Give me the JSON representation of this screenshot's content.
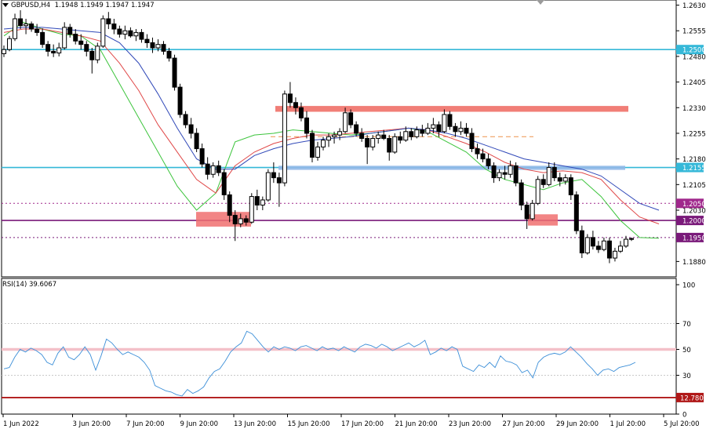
{
  "header": {
    "symbol": "GBPUSD,H4",
    "ohlc": "1.1948 1.1949 1.1947 1.1947"
  },
  "rsi_header": "RSI(14) 39.6067",
  "chart_data": [
    {
      "type": "candlestick",
      "symbol": "GBPUSD",
      "timeframe": "H4",
      "ylim": [
        1.1835,
        1.2645
      ],
      "price_ticks": [
        "1.2630",
        "1.2555",
        "1.2480",
        "1.2405",
        "1.2330",
        "1.2255",
        "1.2180",
        "1.2105",
        "1.2030",
        "1.1880"
      ],
      "x_tick_labels": [
        "1 Jun 2022",
        "3 Jun 20:00",
        "7 Jun 20:00",
        "9 Jun 20:00",
        "13 Jun 20:00",
        "15 Jun 20:00",
        "17 Jun 20:00",
        "21 Jun 20:00",
        "23 Jun 20:00",
        "27 Jun 20:00",
        "29 Jun 20:00",
        "1 Jul 20:00",
        "5 Jul 20:00"
      ],
      "horizontal_levels": [
        {
          "value": 1.25,
          "label": "1.2500",
          "color": "#35b8d8",
          "style": "solid"
        },
        {
          "value": 1.2155,
          "label": "1.2155",
          "color": "#35b8d8",
          "style": "solid"
        },
        {
          "value": 1.205,
          "label": "1.2050",
          "color": "#a0288c",
          "style": "dotted"
        },
        {
          "value": 1.2,
          "label": "1.2000",
          "color": "#7a1a7a",
          "style": "solid"
        },
        {
          "value": 1.195,
          "label": "1.1950",
          "color": "#7a1a7a",
          "style": "dotted"
        }
      ],
      "candles": [
        [
          1.2488,
          1.2512,
          1.2478,
          1.25
        ],
        [
          1.25,
          1.254,
          1.2495,
          1.2532
        ],
        [
          1.2532,
          1.2605,
          1.2525,
          1.259
        ],
        [
          1.259,
          1.2615,
          1.256,
          1.257
        ],
        [
          1.257,
          1.259,
          1.2545,
          1.2575
        ],
        [
          1.2575,
          1.2582,
          1.2552,
          1.256
        ],
        [
          1.256,
          1.2575,
          1.254,
          1.255
        ],
        [
          1.255,
          1.2562,
          1.2505,
          1.2515
        ],
        [
          1.2515,
          1.2525,
          1.248,
          1.2495
        ],
        [
          1.2495,
          1.2515,
          1.2478,
          1.249
        ],
        [
          1.249,
          1.252,
          1.248,
          1.2505
        ],
        [
          1.2505,
          1.258,
          1.25,
          1.2565
        ],
        [
          1.2565,
          1.2575,
          1.2535,
          1.2545
        ],
        [
          1.2545,
          1.256,
          1.2515,
          1.2525
        ],
        [
          1.2525,
          1.2545,
          1.25,
          1.2515
        ],
        [
          1.2515,
          1.2525,
          1.248,
          1.2495
        ],
        [
          1.2495,
          1.2505,
          1.243,
          1.247
        ],
        [
          1.247,
          1.252,
          1.246,
          1.251
        ],
        [
          1.251,
          1.26,
          1.2505,
          1.259
        ],
        [
          1.259,
          1.261,
          1.256,
          1.2575
        ],
        [
          1.2575,
          1.259,
          1.2545,
          1.256
        ],
        [
          1.256,
          1.257,
          1.2535,
          1.2545
        ],
        [
          1.2545,
          1.257,
          1.253,
          1.2555
        ],
        [
          1.2555,
          1.2565,
          1.2535,
          1.254
        ],
        [
          1.254,
          1.256,
          1.2525,
          1.255
        ],
        [
          1.255,
          1.256,
          1.252,
          1.253
        ],
        [
          1.253,
          1.2545,
          1.2505,
          1.252
        ],
        [
          1.252,
          1.2535,
          1.249,
          1.2505
        ],
        [
          1.2505,
          1.253,
          1.2495,
          1.2515
        ],
        [
          1.2515,
          1.2525,
          1.2485,
          1.2495
        ],
        [
          1.2495,
          1.2505,
          1.2465,
          1.2475
        ],
        [
          1.2475,
          1.2485,
          1.238,
          1.239
        ],
        [
          1.239,
          1.24,
          1.23,
          1.231
        ],
        [
          1.231,
          1.232,
          1.227,
          1.228
        ],
        [
          1.228,
          1.23,
          1.224,
          1.2255
        ],
        [
          1.2255,
          1.227,
          1.22,
          1.221
        ],
        [
          1.221,
          1.2225,
          1.2155,
          1.2165
        ],
        [
          1.2165,
          1.2185,
          1.212,
          1.2135
        ],
        [
          1.2135,
          1.217,
          1.2125,
          1.216
        ],
        [
          1.216,
          1.2175,
          1.213,
          1.214
        ],
        [
          1.214,
          1.215,
          1.206,
          1.2075
        ],
        [
          1.2075,
          1.2085,
          1.1995,
          1.2015
        ],
        [
          1.2015,
          1.203,
          1.194,
          1.199
        ],
        [
          1.199,
          1.202,
          1.198,
          1.2005
        ],
        [
          1.2005,
          1.2015,
          1.1985,
          1.1995
        ],
        [
          1.1995,
          1.208,
          1.199,
          1.207
        ],
        [
          1.207,
          1.209,
          1.203,
          1.2045
        ],
        [
          1.2045,
          1.207,
          1.203,
          1.206
        ],
        [
          1.206,
          1.215,
          1.2055,
          1.214
        ],
        [
          1.214,
          1.217,
          1.211,
          1.2125
        ],
        [
          1.2125,
          1.214,
          1.204,
          1.211
        ],
        [
          1.211,
          1.238,
          1.21,
          1.237
        ],
        [
          1.237,
          1.2405,
          1.233,
          1.2345
        ],
        [
          1.2345,
          1.236,
          1.231,
          1.233
        ],
        [
          1.233,
          1.2345,
          1.229,
          1.23
        ],
        [
          1.23,
          1.232,
          1.224,
          1.2255
        ],
        [
          1.2255,
          1.2265,
          1.217,
          1.2185
        ],
        [
          1.2185,
          1.223,
          1.2175,
          1.2215
        ],
        [
          1.2215,
          1.2245,
          1.2205,
          1.2235
        ],
        [
          1.2235,
          1.2255,
          1.2215,
          1.2245
        ],
        [
          1.2245,
          1.226,
          1.2225,
          1.225
        ],
        [
          1.225,
          1.227,
          1.2235,
          1.226
        ],
        [
          1.226,
          1.233,
          1.2255,
          1.2315
        ],
        [
          1.2315,
          1.2325,
          1.227,
          1.228
        ],
        [
          1.228,
          1.229,
          1.2245,
          1.2255
        ],
        [
          1.2255,
          1.227,
          1.223,
          1.224
        ],
        [
          1.224,
          1.225,
          1.2165,
          1.2215
        ],
        [
          1.2215,
          1.225,
          1.2205,
          1.224
        ],
        [
          1.224,
          1.226,
          1.2225,
          1.225
        ],
        [
          1.225,
          1.2265,
          1.2235,
          1.224
        ],
        [
          1.224,
          1.225,
          1.2175,
          1.22
        ],
        [
          1.22,
          1.2255,
          1.2195,
          1.2245
        ],
        [
          1.2245,
          1.226,
          1.2225,
          1.2235
        ],
        [
          1.2235,
          1.2275,
          1.223,
          1.226
        ],
        [
          1.226,
          1.227,
          1.2235,
          1.2245
        ],
        [
          1.2245,
          1.2275,
          1.224,
          1.2265
        ],
        [
          1.2265,
          1.228,
          1.2245,
          1.2255
        ],
        [
          1.2255,
          1.2285,
          1.225,
          1.227
        ],
        [
          1.227,
          1.23,
          1.2255,
          1.228
        ],
        [
          1.228,
          1.229,
          1.2245,
          1.226
        ],
        [
          1.226,
          1.2325,
          1.2255,
          1.231
        ],
        [
          1.231,
          1.232,
          1.2265,
          1.2275
        ],
        [
          1.2275,
          1.2285,
          1.2245,
          1.226
        ],
        [
          1.226,
          1.229,
          1.225,
          1.227
        ],
        [
          1.227,
          1.2285,
          1.2245,
          1.2255
        ],
        [
          1.2255,
          1.227,
          1.22,
          1.221
        ],
        [
          1.221,
          1.2225,
          1.218,
          1.2195
        ],
        [
          1.2195,
          1.221,
          1.217,
          1.218
        ],
        [
          1.218,
          1.2195,
          1.215,
          1.216
        ],
        [
          1.216,
          1.217,
          1.211,
          1.2125
        ],
        [
          1.2125,
          1.215,
          1.2115,
          1.214
        ],
        [
          1.214,
          1.216,
          1.212,
          1.2135
        ],
        [
          1.2135,
          1.2175,
          1.2125,
          1.216
        ],
        [
          1.216,
          1.217,
          1.21,
          1.211
        ],
        [
          1.211,
          1.212,
          1.203,
          1.2045
        ],
        [
          1.2045,
          1.2055,
          1.1975,
          1.2005
        ],
        [
          1.2005,
          1.206,
          1.2,
          1.205
        ],
        [
          1.205,
          1.213,
          1.2045,
          1.212
        ],
        [
          1.212,
          1.2135,
          1.2095,
          1.2105
        ],
        [
          1.2105,
          1.217,
          1.21,
          1.2155
        ],
        [
          1.2155,
          1.217,
          1.2115,
          1.2125
        ],
        [
          1.2125,
          1.214,
          1.21,
          1.2115
        ],
        [
          1.2115,
          1.2135,
          1.2105,
          1.2125
        ],
        [
          1.2125,
          1.2135,
          1.206,
          1.2075
        ],
        [
          1.2075,
          1.2085,
          1.196,
          1.197
        ],
        [
          1.197,
          1.1985,
          1.189,
          1.1905
        ],
        [
          1.1905,
          1.196,
          1.19,
          1.195
        ],
        [
          1.195,
          1.197,
          1.1915,
          1.1925
        ],
        [
          1.1925,
          1.194,
          1.1905,
          1.1915
        ],
        [
          1.1915,
          1.195,
          1.191,
          1.194
        ],
        [
          1.194,
          1.195,
          1.1875,
          1.189
        ],
        [
          1.189,
          1.192,
          1.188,
          1.191
        ],
        [
          1.191,
          1.194,
          1.1905,
          1.1925
        ],
        [
          1.1925,
          1.1955,
          1.192,
          1.1945
        ],
        [
          1.1945,
          1.195,
          1.194,
          1.1947
        ]
      ],
      "moving_averages": [
        {
          "name": "fast",
          "color": "#3cc43c",
          "values": [
            1.254,
            1.258,
            1.256,
            1.2545,
            1.254,
            1.25,
            1.24,
            1.23,
            1.22,
            1.21,
            1.203,
            1.208,
            1.223,
            1.225,
            1.2255,
            1.2265,
            1.226,
            1.2255,
            1.225,
            1.2255,
            1.2262,
            1.227,
            1.226,
            1.223,
            1.22,
            1.215,
            1.212,
            1.2105,
            1.209,
            1.211,
            1.212,
            1.207,
            1.2,
            1.195,
            1.1948
          ]
        },
        {
          "name": "mid",
          "color": "#e04848",
          "values": [
            1.255,
            1.256,
            1.256,
            1.255,
            1.254,
            1.2525,
            1.246,
            1.238,
            1.228,
            1.22,
            1.212,
            1.208,
            1.216,
            1.22,
            1.2225,
            1.224,
            1.225,
            1.225,
            1.2255,
            1.226,
            1.2265,
            1.227,
            1.2265,
            1.2245,
            1.2225,
            1.22,
            1.217,
            1.215,
            1.214,
            1.2145,
            1.214,
            1.212,
            1.206,
            1.201,
            1.199
          ]
        },
        {
          "name": "slow",
          "color": "#3048b8",
          "values": [
            1.256,
            1.2565,
            1.2565,
            1.256,
            1.2555,
            1.255,
            1.252,
            1.246,
            1.237,
            1.227,
            1.218,
            1.215,
            1.215,
            1.219,
            1.221,
            1.2225,
            1.2235,
            1.224,
            1.2245,
            1.2255,
            1.2262,
            1.227,
            1.2265,
            1.2255,
            1.224,
            1.222,
            1.22,
            1.218,
            1.217,
            1.216,
            1.215,
            1.213,
            1.209,
            1.205,
            1.203
          ]
        }
      ]
    },
    {
      "type": "line",
      "name": "RSI(14)",
      "ylim": [
        0,
        100
      ],
      "y_ticks": [
        "100",
        "70",
        "50",
        "30",
        "0"
      ],
      "levels": [
        {
          "value": 50,
          "color": "#f4c0c8"
        },
        {
          "value": 12.78,
          "label": "12.7800",
          "color": "#b01818"
        }
      ],
      "values": [
        35,
        36,
        44,
        50,
        48,
        51,
        49,
        46,
        40,
        38,
        47,
        52,
        44,
        42,
        46,
        52,
        46,
        34,
        45,
        58,
        55,
        50,
        46,
        48,
        46,
        44,
        40,
        34,
        22,
        20,
        18,
        17,
        15,
        14,
        19,
        16,
        18,
        21,
        28,
        33,
        35,
        41,
        48,
        52,
        55,
        64,
        62,
        57,
        52,
        48,
        52,
        50,
        52,
        51,
        49,
        52,
        53,
        51,
        49,
        52,
        50,
        51,
        49,
        52,
        50,
        48,
        52,
        54,
        53,
        51,
        54,
        52,
        49,
        51,
        53,
        55,
        52,
        54,
        57,
        46,
        48,
        51,
        49,
        52,
        50,
        37,
        35,
        33,
        38,
        36,
        40,
        36,
        45,
        41,
        40,
        38,
        32,
        34,
        28,
        40,
        44,
        46,
        47,
        46,
        48,
        52,
        48,
        44,
        39,
        35,
        30,
        34,
        35,
        33,
        36,
        37,
        38,
        40
      ]
    }
  ]
}
